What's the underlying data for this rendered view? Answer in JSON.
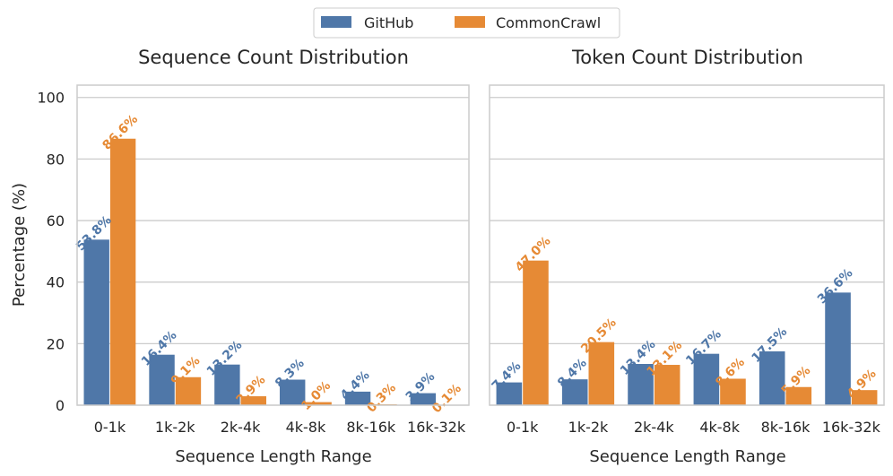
{
  "legend": {
    "items": [
      {
        "label": "GitHub",
        "color": "#4f77a8"
      },
      {
        "label": "CommonCrawl",
        "color": "#e68a35"
      }
    ]
  },
  "chart_data": [
    {
      "type": "bar",
      "title": "Sequence Count Distribution",
      "xlabel": "Sequence Length Range",
      "ylabel": "Percentage (%)",
      "ylim": [
        0,
        104
      ],
      "yticks": [
        "0",
        "20",
        "40",
        "60",
        "80",
        "100"
      ],
      "categories": [
        "0-1k",
        "1k-2k",
        "2k-4k",
        "4k-8k",
        "8k-16k",
        "16k-32k"
      ],
      "series": [
        {
          "name": "GitHub",
          "color": "#4f77a8",
          "values": [
            53.8,
            16.4,
            13.2,
            8.3,
            4.4,
            3.9
          ],
          "labels": [
            "53.8%",
            "16.4%",
            "13.2%",
            "8.3%",
            "4.4%",
            "3.9%"
          ]
        },
        {
          "name": "CommonCrawl",
          "color": "#e68a35",
          "values": [
            86.6,
            9.1,
            2.9,
            1.0,
            0.3,
            0.1
          ],
          "labels": [
            "86.6%",
            "9.1%",
            "2.9%",
            "1.0%",
            "0.3%",
            "0.1%"
          ]
        }
      ]
    },
    {
      "type": "bar",
      "title": "Token Count Distribution",
      "xlabel": "Sequence Length Range",
      "ylabel": "",
      "ylim": [
        0,
        104
      ],
      "categories": [
        "0-1k",
        "1k-2k",
        "2k-4k",
        "4k-8k",
        "8k-16k",
        "16k-32k"
      ],
      "series": [
        {
          "name": "GitHub",
          "color": "#4f77a8",
          "values": [
            7.4,
            8.4,
            13.4,
            16.7,
            17.5,
            36.6
          ],
          "labels": [
            "7.4%",
            "8.4%",
            "13.4%",
            "16.7%",
            "17.5%",
            "36.6%"
          ]
        },
        {
          "name": "CommonCrawl",
          "color": "#e68a35",
          "values": [
            47.0,
            20.5,
            13.1,
            8.6,
            5.9,
            4.9
          ],
          "labels": [
            "47.0%",
            "20.5%",
            "13.1%",
            "8.6%",
            "5.9%",
            "4.9%"
          ]
        }
      ]
    }
  ]
}
